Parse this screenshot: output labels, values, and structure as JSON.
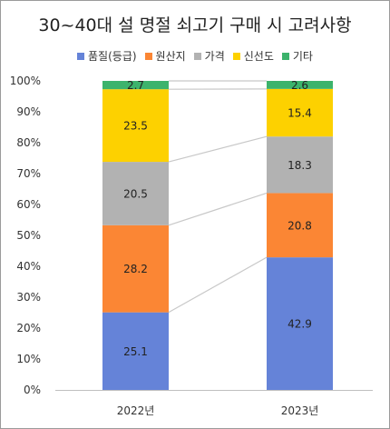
{
  "chart_data": {
    "type": "bar",
    "stacked": true,
    "title": "30~40대 설 명절 쇠고기 구매 시 고려사항",
    "categories": [
      "2022년",
      "2023년"
    ],
    "series": [
      {
        "name": "품질(등급)",
        "color": "#6583d8",
        "values": [
          25.1,
          42.9
        ]
      },
      {
        "name": "원산지",
        "color": "#fb8634",
        "values": [
          28.2,
          20.8
        ]
      },
      {
        "name": "가격",
        "color": "#b2b2b2",
        "values": [
          20.5,
          18.3
        ]
      },
      {
        "name": "신선도",
        "color": "#fdd100",
        "values": [
          23.5,
          15.4
        ]
      },
      {
        "name": "기타",
        "color": "#3cb36c",
        "values": [
          2.7,
          2.6
        ]
      }
    ],
    "yticks": [
      "0%",
      "10%",
      "20%",
      "30%",
      "40%",
      "50%",
      "60%",
      "70%",
      "80%",
      "90%",
      "100%"
    ],
    "ylim": [
      0,
      100
    ],
    "grid": false,
    "legend": "top-center",
    "connector_lines": true
  }
}
